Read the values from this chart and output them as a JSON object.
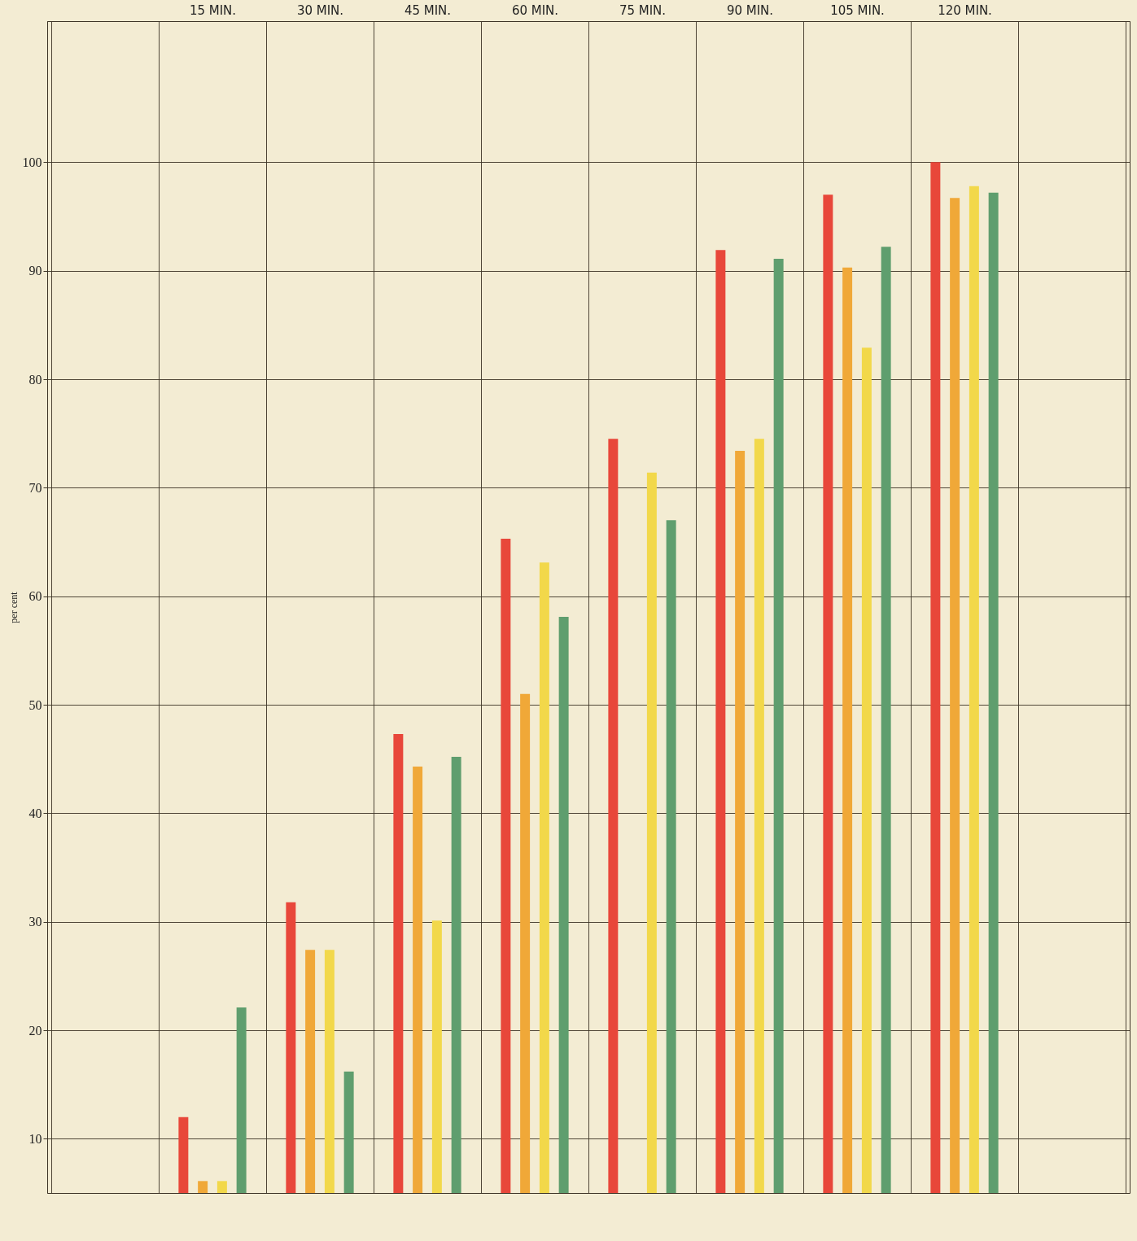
{
  "chart_data": {
    "type": "bar",
    "ylabel": "per cent",
    "categories": [
      "15 MIN.",
      "30 MIN.",
      "45 MIN.",
      "60 MIN.",
      "75 MIN.",
      "90 MIN.",
      "105 MIN.",
      "120 MIN."
    ],
    "series": [
      {
        "color": "#e8473a",
        "values": [
          12.0,
          31.8,
          47.3,
          65.3,
          74.5,
          91.9,
          97.0,
          100.0
        ]
      },
      {
        "color": "#f0a838",
        "values": [
          6.1,
          27.4,
          44.3,
          51.0,
          null,
          73.4,
          90.3,
          96.7
        ]
      },
      {
        "color": "#f2d84a",
        "values": [
          6.1,
          27.4,
          30.1,
          63.1,
          71.4,
          74.5,
          82.9,
          97.8
        ]
      },
      {
        "color": "#5f9e6e",
        "values": [
          22.1,
          16.2,
          45.2,
          58.1,
          67.0,
          91.1,
          92.2,
          97.2
        ]
      }
    ],
    "ylim": [
      5,
      113
    ],
    "yticks": [
      10,
      20,
      30,
      40,
      50,
      60,
      70,
      80,
      90,
      100
    ],
    "grid": true,
    "legend": false
  }
}
